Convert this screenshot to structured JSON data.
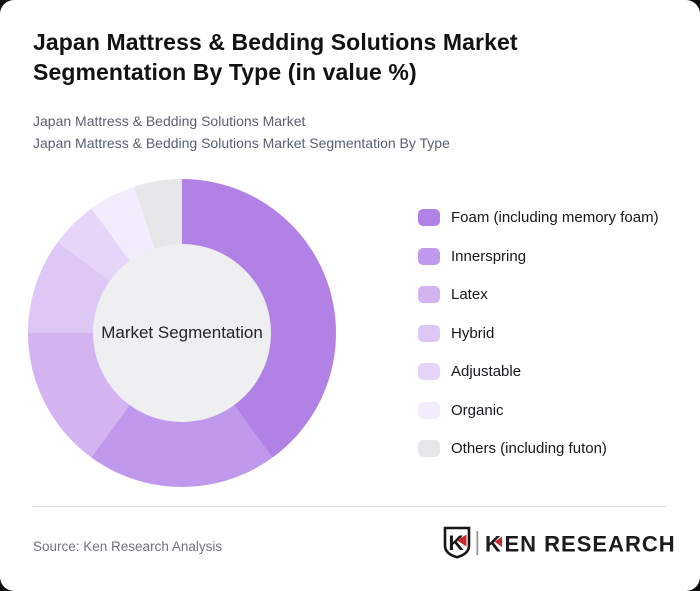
{
  "page": {
    "outer_background": "#0c0c0e",
    "card_background": "#ffffff"
  },
  "header": {
    "title_line1": "Japan Mattress & Bedding Solutions Market",
    "title_line2": "Segmentation By Type (in value %)",
    "subtitle_line1": "Japan Mattress & Bedding Solutions Market",
    "subtitle_line2": "Japan Mattress & Bedding Solutions Market Segmentation By Type"
  },
  "chart_data": {
    "type": "pie",
    "variant": "donut",
    "title": "Japan Mattress & Bedding Solutions Market Segmentation By Type (in value %)",
    "unit": "value %",
    "center_label": "Market Segmentation",
    "start_angle_deg": 0,
    "direction": "clockwise",
    "legend_position": "right",
    "hole_color": "#efeff1",
    "segments": [
      {
        "label": "Foam (including memory foam)",
        "value": 40,
        "color": "#b181e6"
      },
      {
        "label": "Innerspring",
        "value": 20,
        "color": "#c099ec"
      },
      {
        "label": "Latex",
        "value": 15,
        "color": "#d3b4f1"
      },
      {
        "label": "Hybrid",
        "value": 10,
        "color": "#ddc7f5"
      },
      {
        "label": "Adjustable",
        "value": 5,
        "color": "#e7d5f9"
      },
      {
        "label": "Organic",
        "value": 5,
        "color": "#f3ecfd"
      },
      {
        "label": "Others (including futon)",
        "value": 5,
        "color": "#e7e6e8"
      }
    ]
  },
  "footer": {
    "source": "Source: Ken Research Analysis",
    "logo": {
      "mark_letter": "K",
      "wordmark_first": "K",
      "wordmark_rest": "EN RESEARCH",
      "accent_color": "#c5292e",
      "text_color": "#1c1c1f"
    }
  }
}
